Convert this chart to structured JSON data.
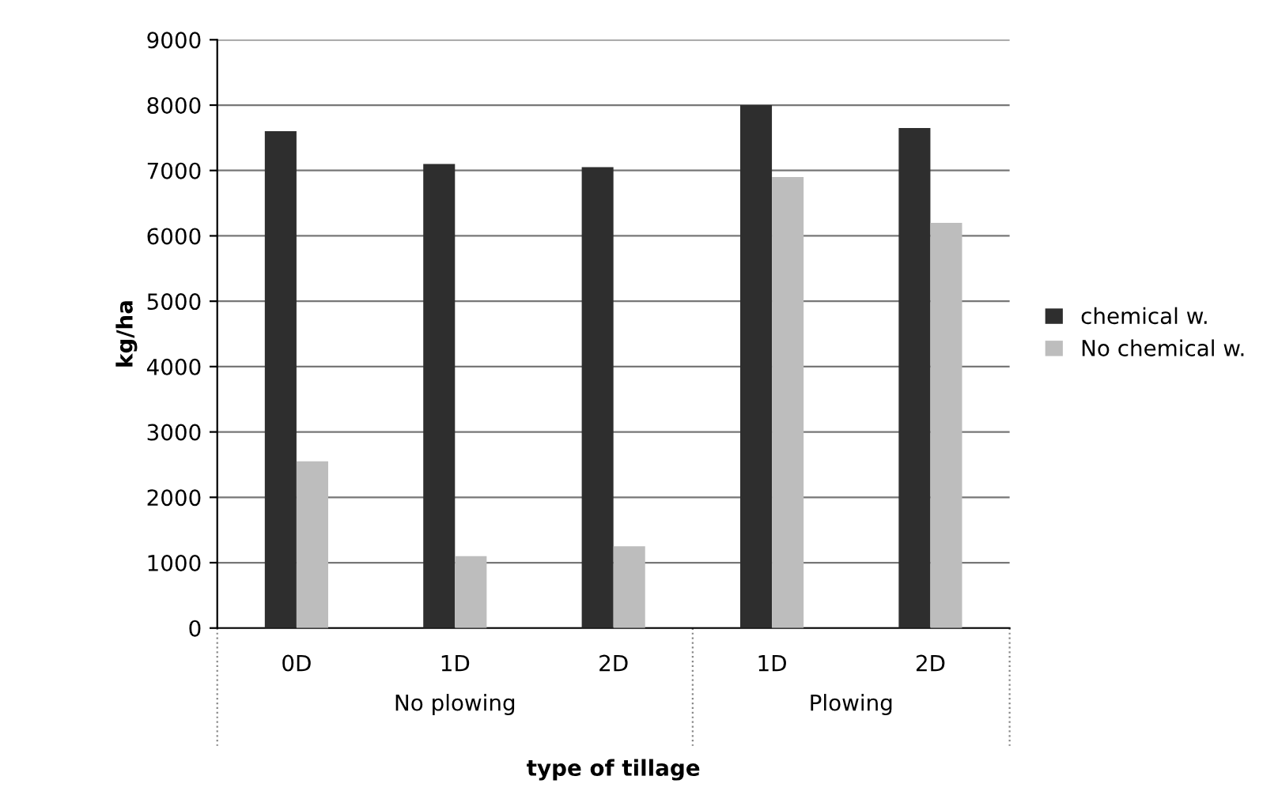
{
  "chart_data": {
    "type": "bar",
    "xlabel": "type of tillage",
    "ylabel": "kg/ha",
    "categories": [
      "0D",
      "1D",
      "2D",
      "1D",
      "2D"
    ],
    "series": [
      {
        "name": "chemical w.",
        "color": "#2e2e2e",
        "values": [
          7600,
          7100,
          7050,
          8000,
          7650
        ]
      },
      {
        "name": "No chemical w.",
        "color": "#bdbdbd",
        "values": [
          2550,
          1100,
          1250,
          6900,
          6200
        ]
      }
    ],
    "annotations": [
      "No plowing",
      "Plowing"
    ],
    "ylim": [
      0,
      9000
    ],
    "yticks": [
      0,
      1000,
      2000,
      3000,
      4000,
      5000,
      6000,
      7000,
      8000,
      9000
    ],
    "grid": "y",
    "legend": "right"
  }
}
